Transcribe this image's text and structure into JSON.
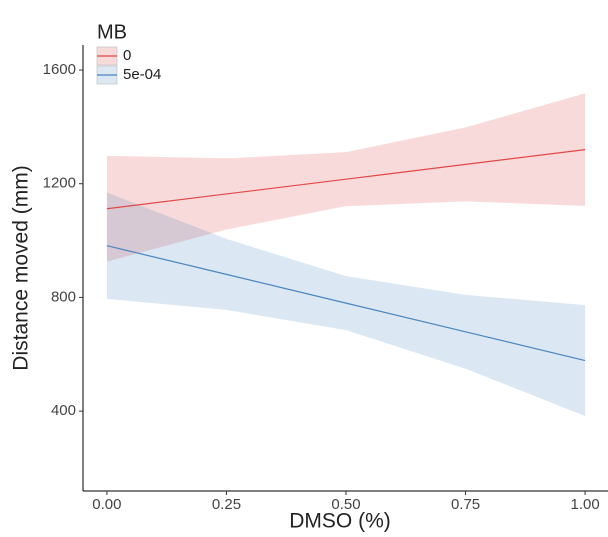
{
  "chart_data": {
    "type": "line",
    "legend_title": "MB",
    "xlabel": "DMSO (%)",
    "ylabel": "Distance moved (mm)",
    "x": [
      0,
      0.25,
      0.5,
      0.75,
      1
    ],
    "series": [
      {
        "name": "0",
        "color": "#e04848",
        "values": [
          1112,
          1164,
          1216,
          1268,
          1320
        ],
        "lower": [
          926,
          1039,
          1121,
          1138,
          1122
        ],
        "upper": [
          1298,
          1289,
          1311,
          1398,
          1518
        ]
      },
      {
        "name": "5e-04",
        "color": "#4a86c0",
        "values": [
          982,
          881,
          780,
          679,
          578
        ],
        "lower": [
          795,
          756,
          685,
          549,
          383
        ],
        "upper": [
          1169,
          1006,
          875,
          809,
          773
        ]
      }
    ],
    "xlim": [
      -0.05,
      1.05
    ],
    "ylim": [
      119,
      1688
    ],
    "xticks": [
      {
        "value": 0,
        "label": "0.00"
      },
      {
        "value": 0.25,
        "label": "0.25"
      },
      {
        "value": 0.5,
        "label": "0.50"
      },
      {
        "value": 0.75,
        "label": "0.75"
      },
      {
        "value": 1,
        "label": "1.00"
      }
    ],
    "yticks": [
      400,
      800,
      1200,
      1600
    ],
    "legend": "top-left"
  }
}
